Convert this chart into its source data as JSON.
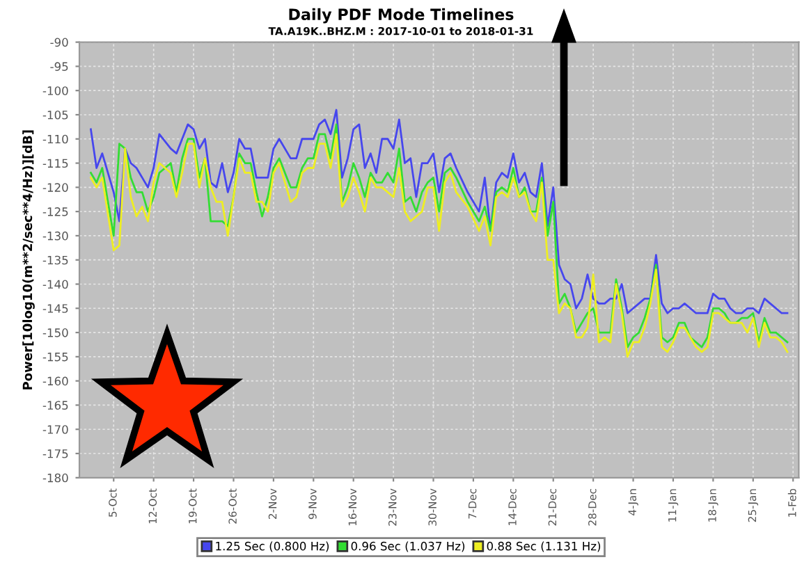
{
  "chart_data": {
    "type": "line",
    "title": "Daily PDF Mode Timelines",
    "subtitle": "TA.A19K..BHZ.M : 2017-10-01 to 2018-01-31",
    "ylabel": "Power[10log10(m**2/sec**4/Hz)][dB]",
    "x": [
      "2017-10-01",
      "2017-10-02",
      "2017-10-03",
      "2017-10-05",
      "2017-10-06",
      "2017-10-07",
      "2017-10-08",
      "2017-10-09",
      "2017-10-10",
      "2017-10-11",
      "2017-10-12",
      "2017-10-13",
      "2017-10-15",
      "2017-10-16",
      "2017-10-17",
      "2017-10-18",
      "2017-10-19",
      "2017-10-20",
      "2017-10-21",
      "2017-10-22",
      "2017-10-23",
      "2017-10-24",
      "2017-10-25",
      "2017-10-26",
      "2017-10-27",
      "2017-10-28",
      "2017-10-29",
      "2017-10-30",
      "2017-10-31",
      "2017-11-01",
      "2017-11-02",
      "2017-11-03",
      "2017-11-05",
      "2017-11-06",
      "2017-11-07",
      "2017-11-08",
      "2017-11-09",
      "2017-11-10",
      "2017-11-11",
      "2017-11-12",
      "2017-11-13",
      "2017-11-14",
      "2017-11-15",
      "2017-11-16",
      "2017-11-17",
      "2017-11-18",
      "2017-11-19",
      "2017-11-20",
      "2017-11-21",
      "2017-11-22",
      "2017-11-23",
      "2017-11-24",
      "2017-11-25",
      "2017-11-26",
      "2017-11-27",
      "2017-11-28",
      "2017-11-29",
      "2017-11-30",
      "2017-12-01",
      "2017-12-02",
      "2017-12-03",
      "2017-12-04",
      "2017-12-06",
      "2017-12-08",
      "2017-12-09",
      "2017-12-10",
      "2017-12-11",
      "2017-12-12",
      "2017-12-13",
      "2017-12-14",
      "2017-12-15",
      "2017-12-16",
      "2017-12-17",
      "2017-12-18",
      "2017-12-19",
      "2017-12-20",
      "2017-12-21",
      "2017-12-22",
      "2017-12-23",
      "2017-12-24",
      "2017-12-25",
      "2017-12-26",
      "2017-12-27",
      "2017-12-28",
      "2017-12-29",
      "2017-12-30",
      "2017-12-31",
      "2018-01-01",
      "2018-01-02",
      "2018-01-03",
      "2018-01-04",
      "2018-01-05",
      "2018-01-06",
      "2018-01-07",
      "2018-01-08",
      "2018-01-09",
      "2018-01-10",
      "2018-01-11",
      "2018-01-12",
      "2018-01-13",
      "2018-01-14",
      "2018-01-15",
      "2018-01-16",
      "2018-01-17",
      "2018-01-18",
      "2018-01-19",
      "2018-01-20",
      "2018-01-21",
      "2018-01-22",
      "2018-01-23",
      "2018-01-24",
      "2018-01-25",
      "2018-01-26",
      "2018-01-27",
      "2018-01-28",
      "2018-01-29",
      "2018-01-30",
      "2018-01-31"
    ],
    "series": [
      {
        "name": "1.25 Sec (0.800 Hz)",
        "color": "#4646ee",
        "values": [
          -108,
          -116,
          -113,
          -121,
          -127,
          -112,
          -115,
          -116,
          -118,
          -120,
          -116,
          -109,
          -112,
          -113,
          -110,
          -107,
          -108,
          -112,
          -110,
          -119,
          -120,
          -115,
          -121,
          -117,
          -110,
          -112,
          -112,
          -118,
          -118,
          -118,
          -112,
          -110,
          -114,
          -114,
          -110,
          -110,
          -110,
          -107,
          -106,
          -109,
          -104,
          -118,
          -114,
          -108,
          -107,
          -116,
          -113,
          -117,
          -110,
          -110,
          -112,
          -106,
          -115,
          -114,
          -122,
          -115,
          -115,
          -113,
          -121,
          -114,
          -113,
          -116,
          -121,
          -125,
          -118,
          -129,
          -119,
          -117,
          -118,
          -113,
          -119,
          -117,
          -121,
          -122,
          -115,
          -128,
          -120,
          -136,
          -139,
          -140,
          -145,
          -143,
          -138,
          -143,
          -144,
          -144,
          -143,
          -143,
          -140,
          -146,
          -145,
          -144,
          -143,
          -143,
          -134,
          -144,
          -146,
          -145,
          -145,
          -144,
          -145,
          -146,
          -146,
          -146,
          -142,
          -143,
          -143,
          -145,
          -146,
          -146,
          -145,
          -145,
          -146,
          -143,
          -144,
          -145,
          -146,
          -146
        ]
      },
      {
        "name": "0.96 Sec (1.037 Hz)",
        "color": "#33dd33",
        "values": [
          -117,
          -119,
          -116,
          -130,
          -111,
          -112,
          -118,
          -121,
          -121,
          -125,
          -122,
          -117,
          -115,
          -121,
          -114,
          -110,
          -110,
          -118,
          -114,
          -127,
          -127,
          -127,
          -128,
          -122,
          -113,
          -115,
          -115,
          -121,
          -126,
          -122,
          -116,
          -114,
          -120,
          -120,
          -116,
          -114,
          -114,
          -109,
          -109,
          -114,
          -107,
          -123,
          -120,
          -115,
          -118,
          -122,
          -117,
          -119,
          -119,
          -117,
          -119,
          -112,
          -123,
          -122,
          -125,
          -121,
          -119,
          -118,
          -125,
          -117,
          -116,
          -118,
          -123,
          -127,
          -124,
          -129,
          -121,
          -120,
          -121,
          -116,
          -122,
          -120,
          -125,
          -125,
          -118,
          -130,
          -123,
          -144,
          -142,
          -145,
          -150,
          -148,
          -146,
          -145,
          -150,
          -150,
          -150,
          -139,
          -145,
          -153,
          -151,
          -150,
          -147,
          -143,
          -136,
          -151,
          -152,
          -151,
          -148,
          -148,
          -151,
          -152,
          -153,
          -151,
          -145,
          -145,
          -146,
          -148,
          -148,
          -147,
          -147,
          -146,
          -152,
          -147,
          -150,
          -150,
          -151,
          -152
        ]
      },
      {
        "name": "0.88 Sec (1.131 Hz)",
        "color": "#eeee22",
        "values": [
          -118,
          -120,
          -118,
          -133,
          -132,
          -112,
          -122,
          -126,
          -124,
          -127,
          -119,
          -115,
          -117,
          -122,
          -117,
          -111,
          -111,
          -120,
          -114,
          -120,
          -123,
          -123,
          -130,
          -122,
          -114,
          -117,
          -117,
          -123,
          -123,
          -125,
          -117,
          -115,
          -123,
          -122,
          -117,
          -116,
          -116,
          -111,
          -111,
          -116,
          -109,
          -124,
          -122,
          -118,
          -121,
          -125,
          -118,
          -120,
          -120,
          -121,
          -122,
          -116,
          -125,
          -127,
          -126,
          -125,
          -120,
          -120,
          -129,
          -119,
          -117,
          -121,
          -124,
          -129,
          -126,
          -132,
          -122,
          -121,
          -122,
          -118,
          -122,
          -121,
          -125,
          -127,
          -119,
          -135,
          -135,
          -146,
          -144,
          -145,
          -151,
          -151,
          -149,
          -138,
          -152,
          -151,
          -152,
          -140,
          -146,
          -155,
          -152,
          -152,
          -149,
          -144,
          -137,
          -153,
          -154,
          -152,
          -149,
          -149,
          -151,
          -153,
          -154,
          -153,
          -146,
          -146,
          -147,
          -148,
          -148,
          -148,
          -150,
          -147,
          -153,
          -148,
          -151,
          -151,
          -152,
          -154
        ]
      }
    ],
    "xlim": [
      "2017-09-29",
      "2018-02-02"
    ],
    "xticks": [
      {
        "value": "2017-10-05",
        "label": "5-Oct"
      },
      {
        "value": "2017-10-12",
        "label": "12-Oct"
      },
      {
        "value": "2017-10-19",
        "label": "19-Oct"
      },
      {
        "value": "2017-10-26",
        "label": "26-Oct"
      },
      {
        "value": "2017-11-02",
        "label": "2-Nov"
      },
      {
        "value": "2017-11-09",
        "label": "9-Nov"
      },
      {
        "value": "2017-11-16",
        "label": "16-Nov"
      },
      {
        "value": "2017-11-23",
        "label": "23-Nov"
      },
      {
        "value": "2017-11-30",
        "label": "30-Nov"
      },
      {
        "value": "2017-12-07",
        "label": "7-Dec"
      },
      {
        "value": "2017-12-14",
        "label": "14-Dec"
      },
      {
        "value": "2017-12-21",
        "label": "21-Dec"
      },
      {
        "value": "2017-12-28",
        "label": "28-Dec"
      },
      {
        "value": "2018-01-04",
        "label": "4-Jan"
      },
      {
        "value": "2018-01-11",
        "label": "11-Jan"
      },
      {
        "value": "2018-01-18",
        "label": "18-Jan"
      },
      {
        "value": "2018-01-25",
        "label": "25-Jan"
      },
      {
        "value": "2018-02-01",
        "label": "1-Feb"
      }
    ],
    "ylim": [
      -180,
      -90
    ],
    "yticks": [
      -180,
      -175,
      -170,
      -165,
      -160,
      -155,
      -150,
      -145,
      -140,
      -135,
      -130,
      -125,
      -120,
      -115,
      -110,
      -105,
      -100,
      -95,
      -90
    ],
    "grid": true,
    "legend": "bottom",
    "marker": "none",
    "line_style": "solid"
  }
}
